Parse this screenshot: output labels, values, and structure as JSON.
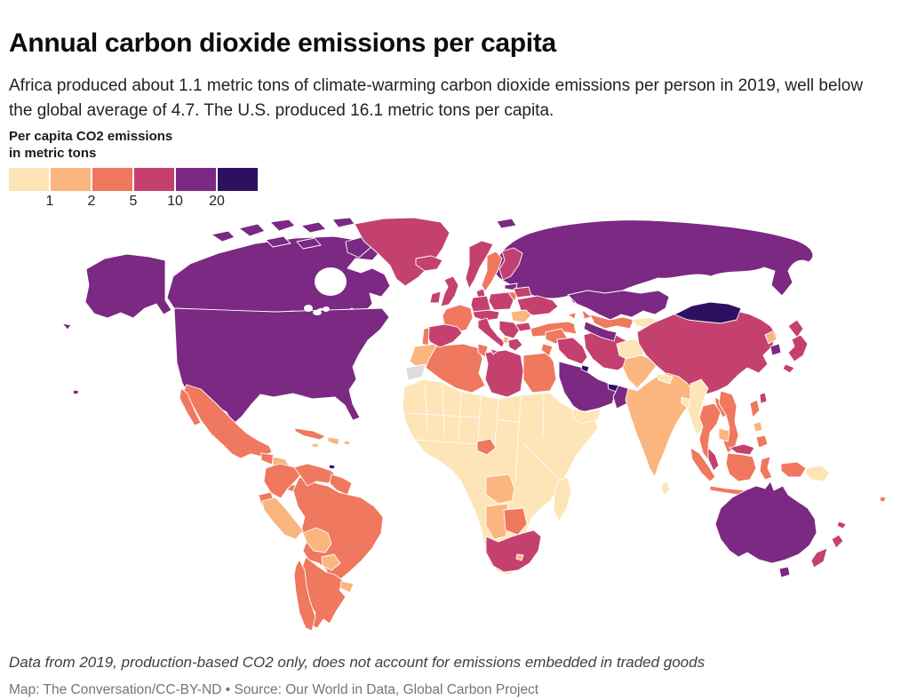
{
  "header": {
    "title": "Annual carbon dioxide emissions per capita",
    "subtitle": "Africa produced about 1.1 metric tons of climate-warming carbon dioxide emissions per person in 2019, well below the global average of 4.7. The U.S. produced 16.1 metric tons per capita."
  },
  "legend": {
    "title_line1": "Per capita CO2 emissions",
    "title_line2": "in metric tons",
    "ticks": [
      "1",
      "2",
      "5",
      "10",
      "20"
    ],
    "colors": [
      "#fde5b7",
      "#fbb57e",
      "#ef785f",
      "#c4416f",
      "#7b2982",
      "#2d1160"
    ],
    "no_data_color": "#dcdcdc"
  },
  "footer": {
    "note": "Data from 2019, production-based CO2 only, does not account for emissions embedded in traded goods",
    "credit": "Map: The Conversation/CC-BY-ND • Source: Our World in Data, Global Carbon Project"
  },
  "chart_data": {
    "type": "heatmap",
    "subtype": "choropleth-world-map",
    "title": "Annual carbon dioxide emissions per capita",
    "unit": "metric tons CO2 per person (2019)",
    "legend_thresholds": [
      1,
      2,
      5,
      10,
      20
    ],
    "band_labels": [
      "<1",
      "1-2",
      "2-5",
      "5-10",
      "10-20",
      ">20"
    ],
    "callout_values": {
      "africa": 1.1,
      "global_average": 4.7,
      "united_states": 16.1
    },
    "country_bands": {
      "russia": 4,
      "canada": 4,
      "united-states": 4,
      "hawaii": 4,
      "greenland": 3,
      "mexico": 2,
      "guatemala": 2,
      "honduras": 1,
      "nicaragua": 0,
      "costa-rica-panama": 2,
      "cuba": 2,
      "hispaniola": 1,
      "jamaica": 1,
      "puerto-rico": 1,
      "trinidad-and-tobago": 5,
      "colombia": 2,
      "venezuela": 2,
      "guyanas": 2,
      "ecuador": 2,
      "peru": 1,
      "brazil": 2,
      "bolivia": 1,
      "paraguay": 1,
      "uruguay": 1,
      "argentina": 2,
      "chile": 2,
      "iceland": 3,
      "ireland": 3,
      "united-kingdom": 3,
      "norway": 3,
      "svalbard": 4,
      "sweden": 2,
      "finland": 3,
      "estonia": 4,
      "latvia-lithuania": 2,
      "denmark": 3,
      "germany": 3,
      "poland": 3,
      "belarus": 3,
      "ukraine": 3,
      "france": 2,
      "spain": 3,
      "portugal": 2,
      "italy": 3,
      "central-europe": 3,
      "romania": 1,
      "balkans": 3,
      "albania": 1,
      "bulgaria": 3,
      "greece": 3,
      "turkey": 2,
      "caucasus": 2,
      "syria": 2,
      "jordan-israel": 2,
      "iraq": 3,
      "iran": 3,
      "saudi-arabia": 4,
      "kuwait": 5,
      "qatar-uae": 5,
      "oman": 4,
      "yemen": 0,
      "morocco": 1,
      "western-sahara": "nodata",
      "algeria": 2,
      "tunisia": 2,
      "libya": 3,
      "egypt": 2,
      "africa-interior": 0,
      "gabon": 2,
      "angola": 1,
      "namibia": 1,
      "botswana": 2,
      "south-africa": 3,
      "lesotho": 1,
      "madagascar": 0,
      "kazakhstan": 4,
      "uzbekistan": 2,
      "turkmenistan": 4,
      "kyrgyzstan-tajikistan": 0,
      "afghanistan": 0,
      "pakistan": 1,
      "india": 1,
      "nepal": 0,
      "bangladesh": 0,
      "sri-lanka": 0,
      "myanmar": 0,
      "thailand": 2,
      "laos": 2,
      "vietnam": 2,
      "cambodia": 1,
      "malaysia": 3,
      "indonesia": 2,
      "timor": 0,
      "papua-new-guinea": 0,
      "philippines": 2,
      "philippines-visayas": 1,
      "china": 3,
      "mongolia": 5,
      "north-korea": 1,
      "south-korea": 4,
      "japan": 3,
      "taiwan": 3,
      "australia": 4,
      "new-zealand": 3,
      "new-caledonia": 3,
      "fiji": 2
    }
  }
}
